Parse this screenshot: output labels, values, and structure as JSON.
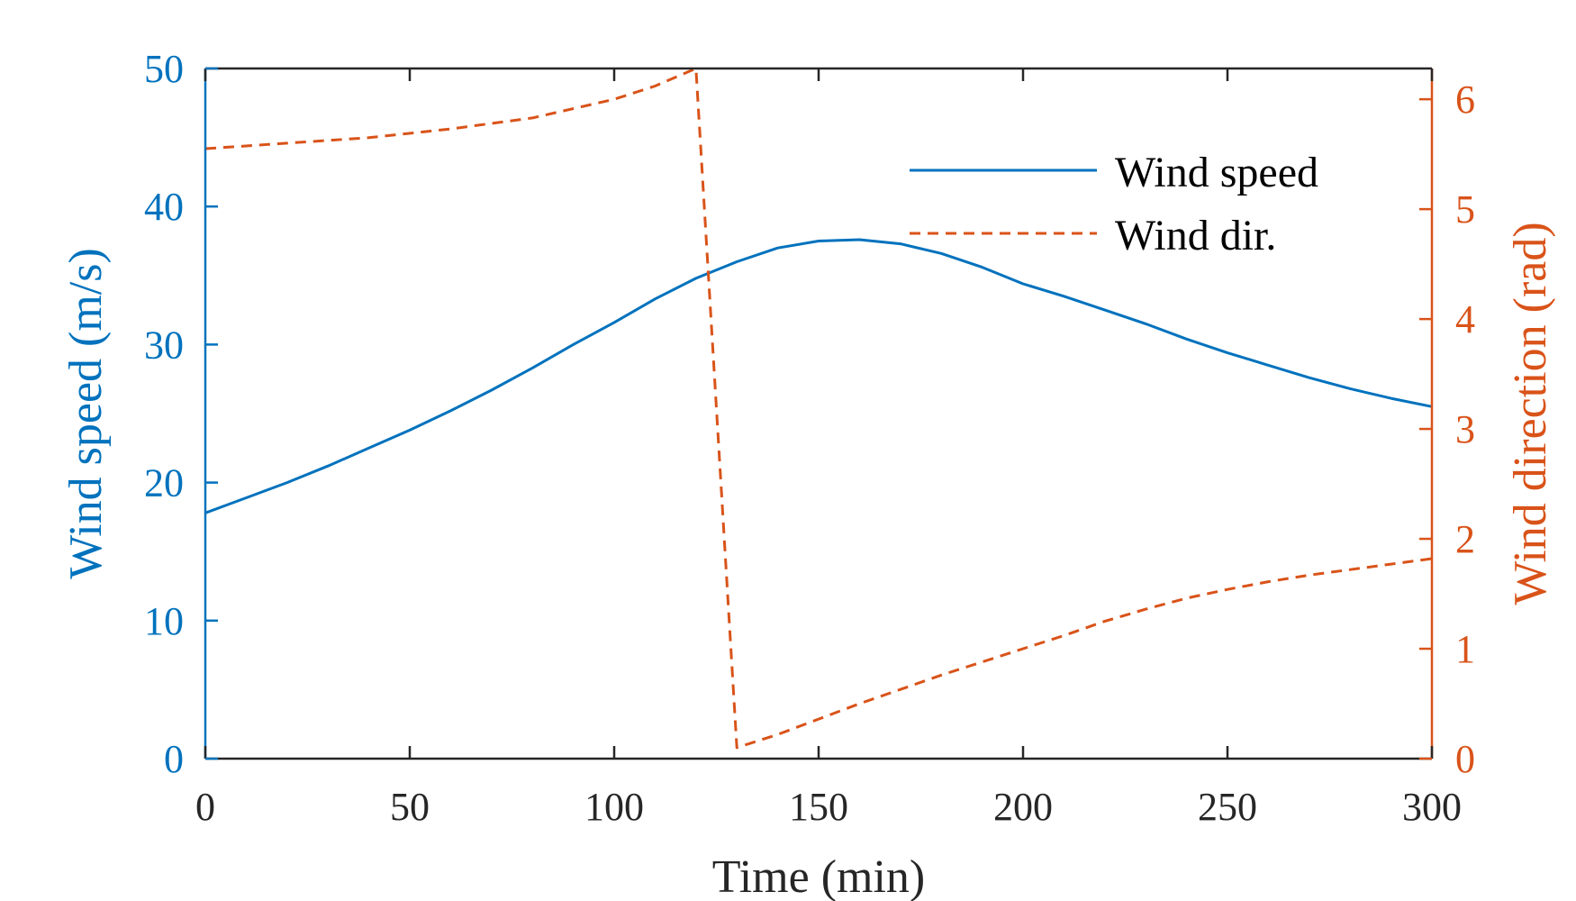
{
  "chart_data": {
    "type": "line",
    "xlabel": "Time (min)",
    "ylabel_left": "Wind speed (m/s)",
    "ylabel_right": "Wind direction (rad)",
    "xlim": [
      0,
      300
    ],
    "ylim_left": [
      0,
      50
    ],
    "ylim_right": [
      0,
      6.28
    ],
    "x_ticks": [
      0,
      50,
      100,
      150,
      200,
      250,
      300
    ],
    "y_ticks_left": [
      0,
      10,
      20,
      30,
      40,
      50
    ],
    "y_ticks_right": [
      0,
      1,
      2,
      3,
      4,
      5,
      6
    ],
    "grid": false,
    "legend_position": "top-right",
    "colors": {
      "speed": "#0072BD",
      "direction": "#D95319",
      "axes": "#262626"
    },
    "series": [
      {
        "name": "Wind speed",
        "axis": "left",
        "style": "solid",
        "x": [
          0,
          10,
          20,
          30,
          40,
          50,
          60,
          70,
          80,
          90,
          100,
          110,
          120,
          130,
          140,
          150,
          160,
          170,
          180,
          190,
          200,
          210,
          220,
          230,
          240,
          250,
          260,
          270,
          280,
          290,
          300
        ],
        "y": [
          17.8,
          18.9,
          20.0,
          21.2,
          22.5,
          23.8,
          25.2,
          26.7,
          28.3,
          30.0,
          31.6,
          33.3,
          34.8,
          36.0,
          37.0,
          37.5,
          37.6,
          37.3,
          36.6,
          35.6,
          34.4,
          33.5,
          32.5,
          31.5,
          30.4,
          29.4,
          28.5,
          27.6,
          26.8,
          26.1,
          25.5
        ]
      },
      {
        "name": "Wind dir.",
        "axis": "right",
        "style": "dashed",
        "x": [
          0,
          20,
          40,
          60,
          80,
          100,
          110,
          120,
          130,
          140,
          150,
          160,
          170,
          180,
          190,
          200,
          210,
          220,
          230,
          240,
          250,
          260,
          270,
          280,
          290,
          300
        ],
        "y": [
          5.55,
          5.6,
          5.65,
          5.73,
          5.83,
          6.0,
          6.12,
          6.28,
          0.1,
          0.22,
          0.36,
          0.5,
          0.63,
          0.76,
          0.88,
          1.0,
          1.12,
          1.25,
          1.36,
          1.46,
          1.54,
          1.61,
          1.67,
          1.72,
          1.77,
          1.82
        ]
      }
    ]
  }
}
